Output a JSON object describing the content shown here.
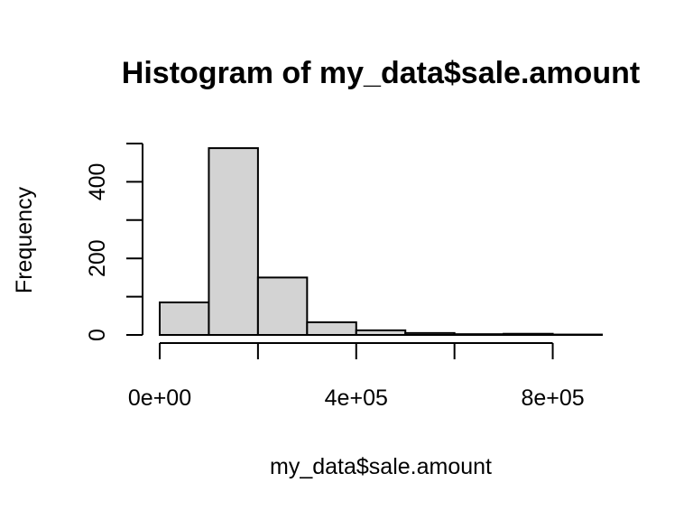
{
  "chart_data": {
    "type": "bar",
    "title": "Histogram of my_data$sale.amount",
    "xlabel": "my_data$sale.amount",
    "ylabel": "Frequency",
    "bins": [
      {
        "from": 0,
        "to": 100000,
        "count": 85
      },
      {
        "from": 100000,
        "to": 200000,
        "count": 488
      },
      {
        "from": 200000,
        "to": 300000,
        "count": 150
      },
      {
        "from": 300000,
        "to": 400000,
        "count": 33
      },
      {
        "from": 400000,
        "to": 500000,
        "count": 12
      },
      {
        "from": 500000,
        "to": 600000,
        "count": 5
      },
      {
        "from": 600000,
        "to": 700000,
        "count": 2
      },
      {
        "from": 700000,
        "to": 800000,
        "count": 3
      },
      {
        "from": 800000,
        "to": 900000,
        "count": 1
      }
    ],
    "xlim": [
      0,
      900000
    ],
    "ylim": [
      0,
      500
    ],
    "x_ticks": [
      0,
      200000,
      400000,
      600000,
      800000
    ],
    "x_tick_labels": [
      "0e+00",
      "",
      "4e+05",
      "",
      "8e+05"
    ],
    "y_ticks": [
      0,
      100,
      200,
      300,
      400,
      500
    ],
    "y_tick_labels": [
      "0",
      "",
      "200",
      "",
      "400",
      ""
    ],
    "grid": false,
    "colors": {
      "bar_fill": "#d3d3d3",
      "bar_stroke": "#000000"
    }
  }
}
